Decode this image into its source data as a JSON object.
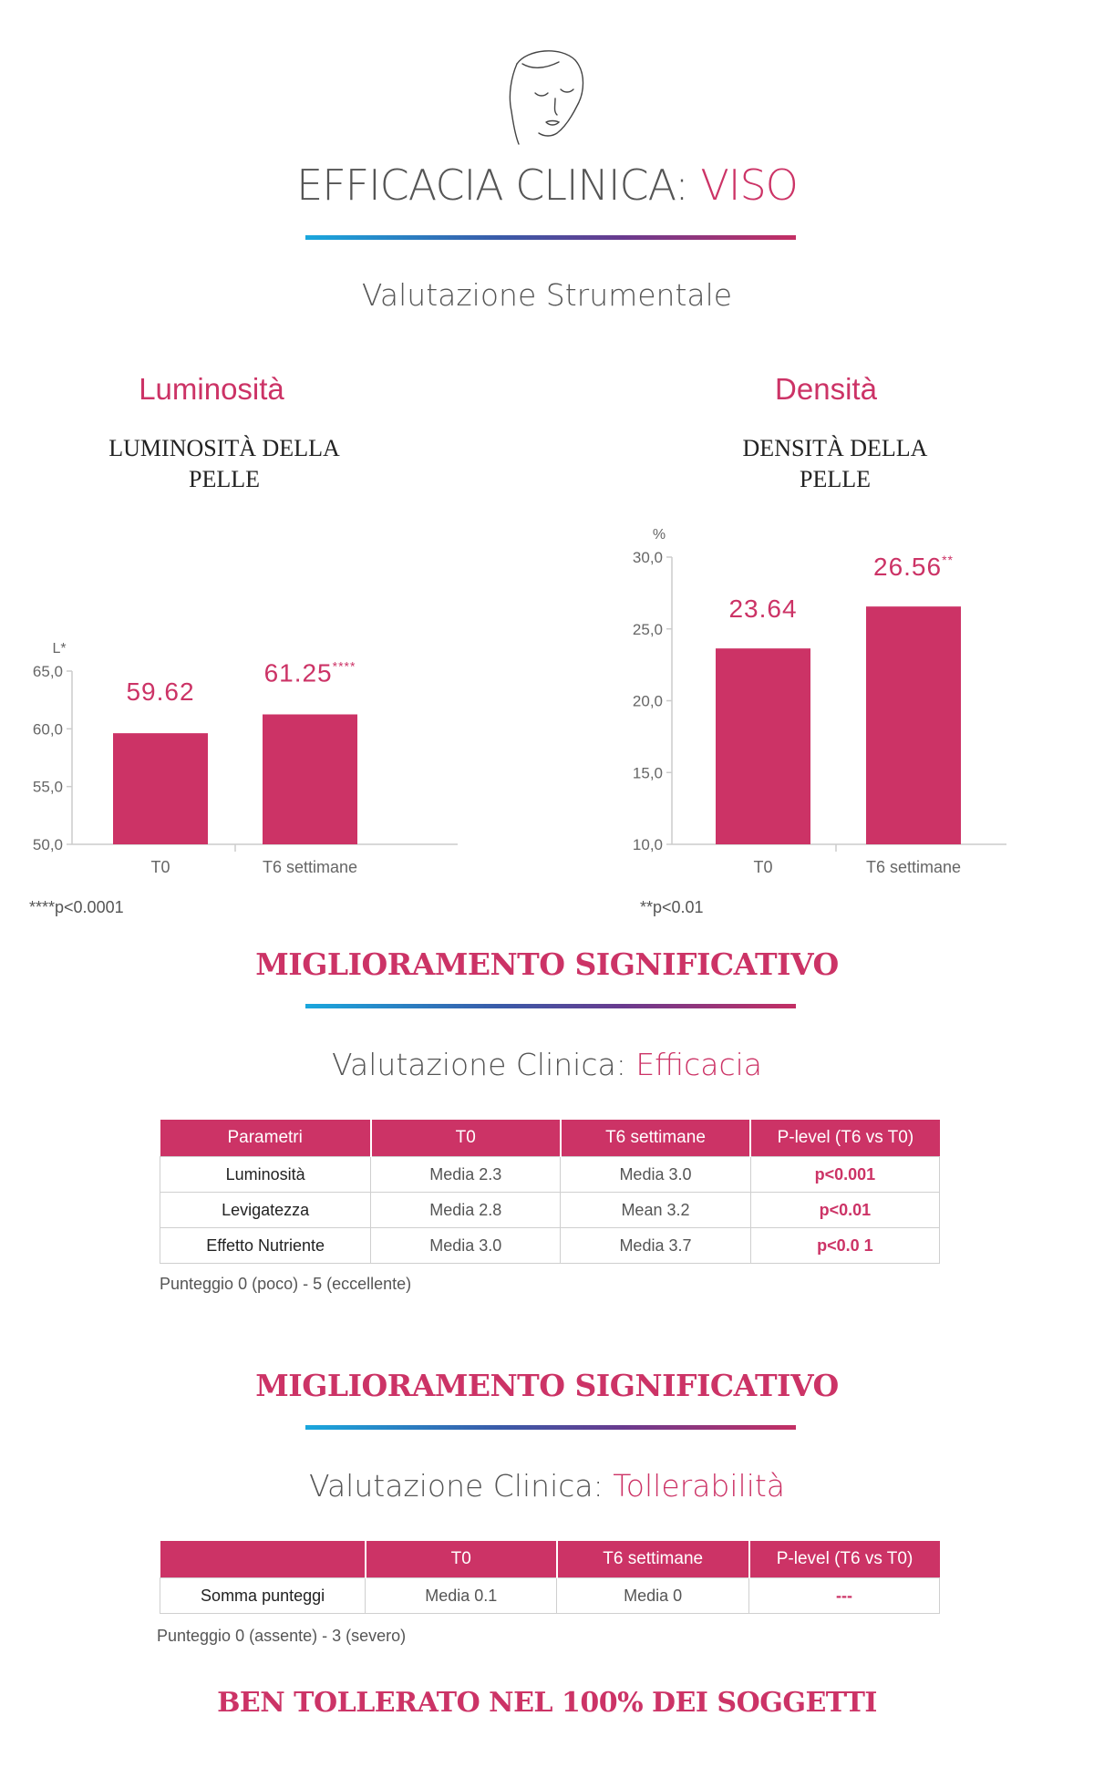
{
  "colors": {
    "accent": "#cc3366",
    "bar": "#cc3366",
    "text": "#555555"
  },
  "header": {
    "icon": "face-outline-icon",
    "title_prefix": "EFFICACIA CLINICA: ",
    "title_accent": "VISO"
  },
  "instrumental": {
    "subtitle": "Valutazione Strumentale",
    "left": {
      "heading": "Luminosità",
      "subtitle_line1": "LUMINOSITÀ DELLA",
      "subtitle_line2": "PELLE",
      "footnote": "****p<0.0001"
    },
    "right": {
      "heading": "Densità",
      "subtitle_line1": "DENSITÀ DELLA",
      "subtitle_line2": "PELLE",
      "footnote": "**p<0.01"
    }
  },
  "chart_data": [
    {
      "type": "bar",
      "title": "LUMINOSITÀ DELLA PELLE",
      "ylabel": "L*",
      "categories": [
        "T0",
        "T6 settimane"
      ],
      "values": [
        59.62,
        61.25
      ],
      "value_labels": [
        "59.62",
        "61.25"
      ],
      "significance": [
        "",
        "****"
      ],
      "ylim": [
        50,
        65
      ],
      "yticks": [
        "50,0",
        "55,0",
        "60,0",
        "65,0"
      ],
      "ytick_values": [
        50,
        55,
        60,
        65
      ],
      "grid": false
    },
    {
      "type": "bar",
      "title": "DENSITÀ DELLA PELLE",
      "ylabel": "%",
      "categories": [
        "T0",
        "T6 settimane"
      ],
      "values": [
        23.64,
        26.56
      ],
      "value_labels": [
        "23.64",
        "26.56"
      ],
      "significance": [
        "",
        "**"
      ],
      "ylim": [
        10,
        30
      ],
      "yticks": [
        "10,0",
        "15,0",
        "20,0",
        "25,0",
        "30,0"
      ],
      "ytick_values": [
        10,
        15,
        20,
        25,
        30
      ],
      "grid": false
    }
  ],
  "banner1": "MIGLIORAMENTO SIGNIFICATIVO",
  "efficacy": {
    "subtitle_prefix": "Valutazione Clinica: ",
    "subtitle_accent": "Efficacia",
    "headers": [
      "Parametri",
      "T0",
      "T6 settimane",
      "P-level (T6 vs T0)"
    ],
    "rows": [
      [
        "Luminosità",
        "Media 2.3",
        "Media 3.0",
        "p<0.001"
      ],
      [
        "Levigatezza",
        "Media 2.8",
        "Mean 3.2",
        "p<0.01"
      ],
      [
        "Effetto Nutriente",
        "Media 3.0",
        "Media 3.7",
        "p<0.0 1"
      ]
    ],
    "note": "Punteggio 0 (poco) - 5 (eccellente)"
  },
  "banner2": "MIGLIORAMENTO SIGNIFICATIVO",
  "tolerability": {
    "subtitle_prefix": "Valutazione Clinica: ",
    "subtitle_accent": "Tollerabilità",
    "headers": [
      "",
      "T0",
      "T6 settimane",
      "P-level (T6 vs T0)"
    ],
    "rows": [
      [
        "Somma punteggi",
        "Media 0.1",
        "Media 0",
        "---"
      ]
    ],
    "note": "Punteggio 0 (assente) - 3 (severo)"
  },
  "banner3": "BEN TOLLERATO NEL 100% DEI SOGGETTI"
}
